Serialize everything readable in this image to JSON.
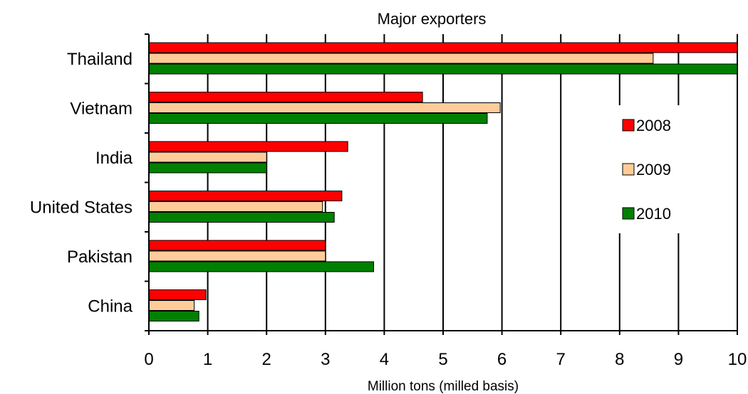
{
  "chart_data": {
    "type": "bar",
    "orientation": "horizontal",
    "title": "Major exporters",
    "xlabel": "Million tons (milled basis)",
    "ylabel": "",
    "xlim": [
      0,
      10
    ],
    "xticks": [
      "0",
      "1",
      "2",
      "3",
      "4",
      "5",
      "6",
      "7",
      "8",
      "9",
      "10"
    ],
    "categories": [
      "Thailand",
      "Vietnam",
      "India",
      "United States",
      "Pakistan",
      "China"
    ],
    "series": [
      {
        "name": "2008",
        "color": "#ff0000",
        "values": [
          10.0,
          4.65,
          3.38,
          3.28,
          3.0,
          0.97
        ]
      },
      {
        "name": "2009",
        "color": "#ffcc99",
        "values": [
          8.57,
          5.97,
          2.0,
          2.95,
          3.0,
          0.77
        ]
      },
      {
        "name": "2010",
        "color": "#008000",
        "values": [
          10.0,
          5.75,
          2.0,
          3.15,
          3.82,
          0.85
        ]
      }
    ],
    "grid": "vertical",
    "legend_position": "right"
  }
}
